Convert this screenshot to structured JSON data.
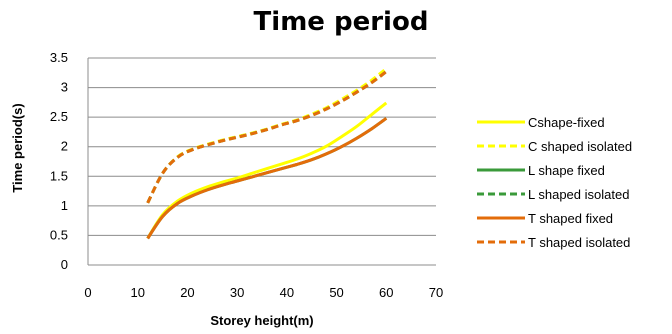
{
  "chart_data": {
    "type": "line",
    "title": "Time period",
    "xlabel": "Storey height(m)",
    "ylabel": "Time period(s)",
    "xlim": [
      0,
      70
    ],
    "ylim": [
      0,
      3.5
    ],
    "x_ticks": [
      "0",
      "10",
      "20",
      "30",
      "40",
      "50",
      "60",
      "70"
    ],
    "y_ticks": [
      "0",
      "0.5",
      "1",
      "1.5",
      "2",
      "2.5",
      "3",
      "3.5"
    ],
    "grid": "horizontal",
    "legend_position": "right",
    "x": [
      12,
      15,
      18,
      21,
      24,
      27,
      30,
      33,
      36,
      39,
      42,
      45,
      48,
      51,
      54,
      57,
      60
    ],
    "series": [
      {
        "name": "Cshape-fixed",
        "color": "#FFFF00",
        "dash": "solid",
        "values": [
          0.45,
          0.85,
          1.08,
          1.22,
          1.32,
          1.4,
          1.47,
          1.55,
          1.63,
          1.71,
          1.79,
          1.89,
          2.01,
          2.17,
          2.34,
          2.54,
          2.74
        ]
      },
      {
        "name": "C shaped isolated",
        "color": "#FFFF00",
        "dash": "dashed",
        "values": [
          1.05,
          1.55,
          1.83,
          1.96,
          2.04,
          2.11,
          2.17,
          2.23,
          2.3,
          2.38,
          2.45,
          2.55,
          2.66,
          2.8,
          2.95,
          3.12,
          3.32
        ]
      },
      {
        "name": "L shape fixed",
        "color": "#3A9A3A",
        "dash": "solid",
        "values": [
          0.45,
          0.82,
          1.04,
          1.17,
          1.27,
          1.35,
          1.42,
          1.49,
          1.56,
          1.63,
          1.7,
          1.78,
          1.88,
          2.0,
          2.14,
          2.3,
          2.48
        ]
      },
      {
        "name": "L shaped isolated",
        "color": "#3A9A3A",
        "dash": "dashed",
        "values": [
          1.05,
          1.55,
          1.82,
          1.95,
          2.03,
          2.1,
          2.16,
          2.22,
          2.29,
          2.37,
          2.44,
          2.53,
          2.64,
          2.77,
          2.92,
          3.08,
          3.27
        ]
      },
      {
        "name": "T shaped fixed",
        "color": "#E36C0A",
        "dash": "solid",
        "values": [
          0.45,
          0.82,
          1.04,
          1.17,
          1.27,
          1.35,
          1.42,
          1.49,
          1.56,
          1.63,
          1.7,
          1.78,
          1.88,
          2.0,
          2.14,
          2.3,
          2.48
        ]
      },
      {
        "name": "T shaped isolated",
        "color": "#E36C0A",
        "dash": "dashed",
        "values": [
          1.05,
          1.55,
          1.82,
          1.95,
          2.03,
          2.1,
          2.16,
          2.22,
          2.29,
          2.37,
          2.44,
          2.53,
          2.64,
          2.77,
          2.92,
          3.08,
          3.27
        ]
      }
    ]
  }
}
